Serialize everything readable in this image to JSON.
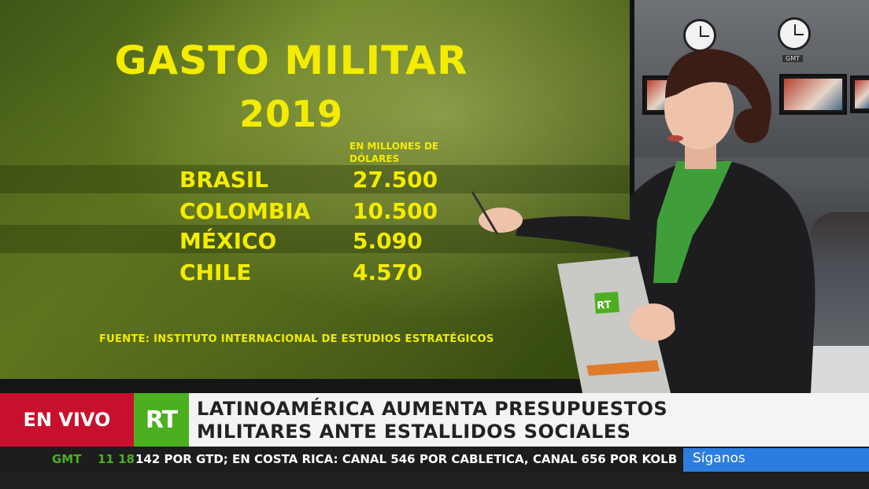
{
  "graphic": {
    "title": "GASTO MILITAR",
    "year": "2019",
    "units": "EN MILLONES DE DÓLARES",
    "rows": [
      {
        "country": "BRASIL",
        "value": "27.500"
      },
      {
        "country": "COLOMBIA",
        "value": "10.500"
      },
      {
        "country": "MÉXICO",
        "value": "5.090"
      },
      {
        "country": "CHILE",
        "value": "4.570"
      }
    ],
    "source": "FUENTE: INSTITUTO INTERNACIONAL DE ESTUDIOS ESTRATÉGICOS",
    "colors": {
      "text": "#f4ec00",
      "background": "#4f6a18"
    }
  },
  "studio": {
    "clock_label": "GMT"
  },
  "clipboard": {
    "logo": "RT"
  },
  "lower_third": {
    "live_label": "EN VIVO",
    "logo": "RT",
    "headline_line1": "LATINOAMÉRICA AUMENTA PRESUPUESTOS",
    "headline_line2": "MILITARES ANTE ESTALLIDOS SOCIALES",
    "colors": {
      "live": "#c8102e",
      "logo": "#4caf1f",
      "follow": "#2b7de0"
    }
  },
  "ticker": {
    "timezone": "GMT",
    "time": "11 18",
    "text": "142 POR GTD; EN COSTA RICA: CANAL 546 POR CABLETICA, CANAL 656 POR KOLB",
    "follow_label": "Síganos"
  }
}
